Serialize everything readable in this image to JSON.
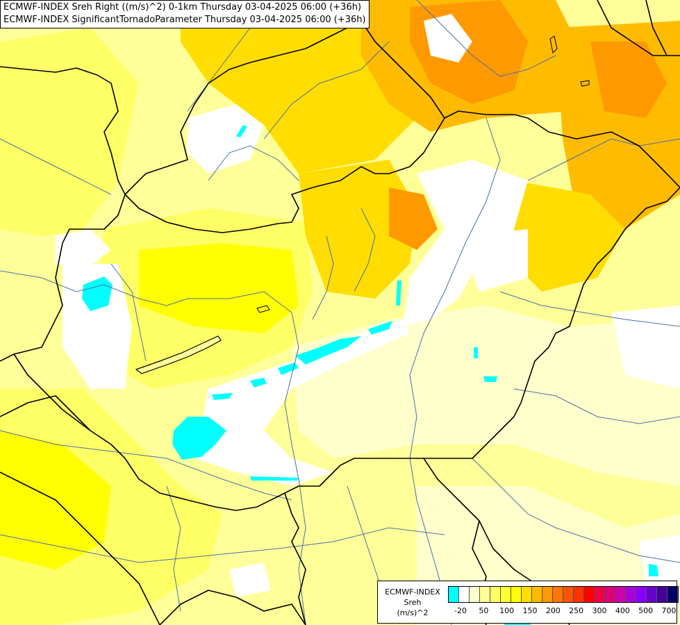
{
  "titles": {
    "line1": "ECMWF-INDEX Sreh Right ((m/s)^2) 0-1km Thursday 03-04-2025 06:00 (+36h)",
    "line2": "ECMWF-INDEX SignificantTornadoParameter Thursday 03-04-2025 06:00 (+36h)"
  },
  "legend": {
    "model": "ECMWF-INDEX",
    "variable": "Sreh",
    "unit": "(m/s)^2",
    "tick_labels": [
      "-20",
      "50",
      "100",
      "150",
      "200",
      "250",
      "300",
      "400",
      "500",
      "700"
    ],
    "colors": [
      "#00ffff",
      "#ffffff",
      "#ffffcc",
      "#ffff99",
      "#ffff66",
      "#ffff33",
      "#ffff00",
      "#ffdd00",
      "#ffbb00",
      "#ff9900",
      "#ff7700",
      "#ff5500",
      "#ff3300",
      "#ff0000",
      "#ee0044",
      "#dd0077",
      "#cc00aa",
      "#aa00dd",
      "#8800ff",
      "#6600cc",
      "#440099",
      "#000066"
    ]
  },
  "colors": {
    "pale": "#ffffcc",
    "light_yellow": "#ffff99",
    "yellow": "#ffff66",
    "bright_yellow": "#ffff00",
    "gold": "#ffdd00",
    "orange": "#ffbb00",
    "dark_orange": "#ff9900",
    "cyan": "#00ffff",
    "white": "#ffffff",
    "border": "#000000",
    "river": "#4a6fa5"
  }
}
